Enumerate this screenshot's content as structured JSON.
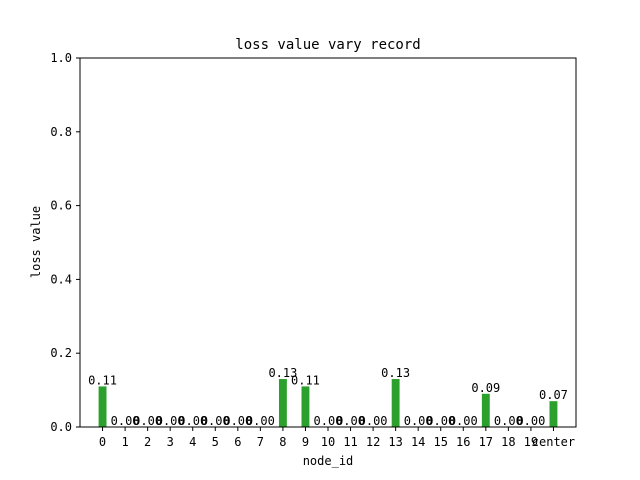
{
  "chart_data": {
    "type": "bar",
    "title": "loss value vary record",
    "xlabel": "node_id",
    "ylabel": "loss value",
    "ylim": [
      0,
      1.0
    ],
    "yticks": [
      0.0,
      0.2,
      0.4,
      0.6,
      0.8,
      1.0
    ],
    "ytick_labels": [
      "0.0",
      "0.2",
      "0.4",
      "0.6",
      "0.8",
      "1.0"
    ],
    "categories": [
      "0",
      "1",
      "2",
      "3",
      "4",
      "5",
      "6",
      "7",
      "8",
      "9",
      "10",
      "11",
      "12",
      "13",
      "14",
      "15",
      "16",
      "17",
      "18",
      "19",
      "center"
    ],
    "values": [
      0.11,
      0.0,
      0.0,
      0.0,
      0.0,
      0.0,
      0.0,
      0.0,
      0.13,
      0.11,
      0.0,
      0.0,
      0.0,
      0.13,
      0.0,
      0.0,
      0.0,
      0.09,
      0.0,
      0.0,
      0.07
    ],
    "data_labels": [
      "0.11",
      "0.00",
      "0.00",
      "0.00",
      "0.00",
      "0.00",
      "0.00",
      "0.00",
      "0.13",
      "0.11",
      "0.00",
      "0.00",
      "0.00",
      "0.13",
      "0.00",
      "0.00",
      "0.00",
      "0.09",
      "0.00",
      "0.00",
      "0.07"
    ],
    "bar_color": "#2ca02c",
    "grid": false,
    "legend": "none"
  }
}
